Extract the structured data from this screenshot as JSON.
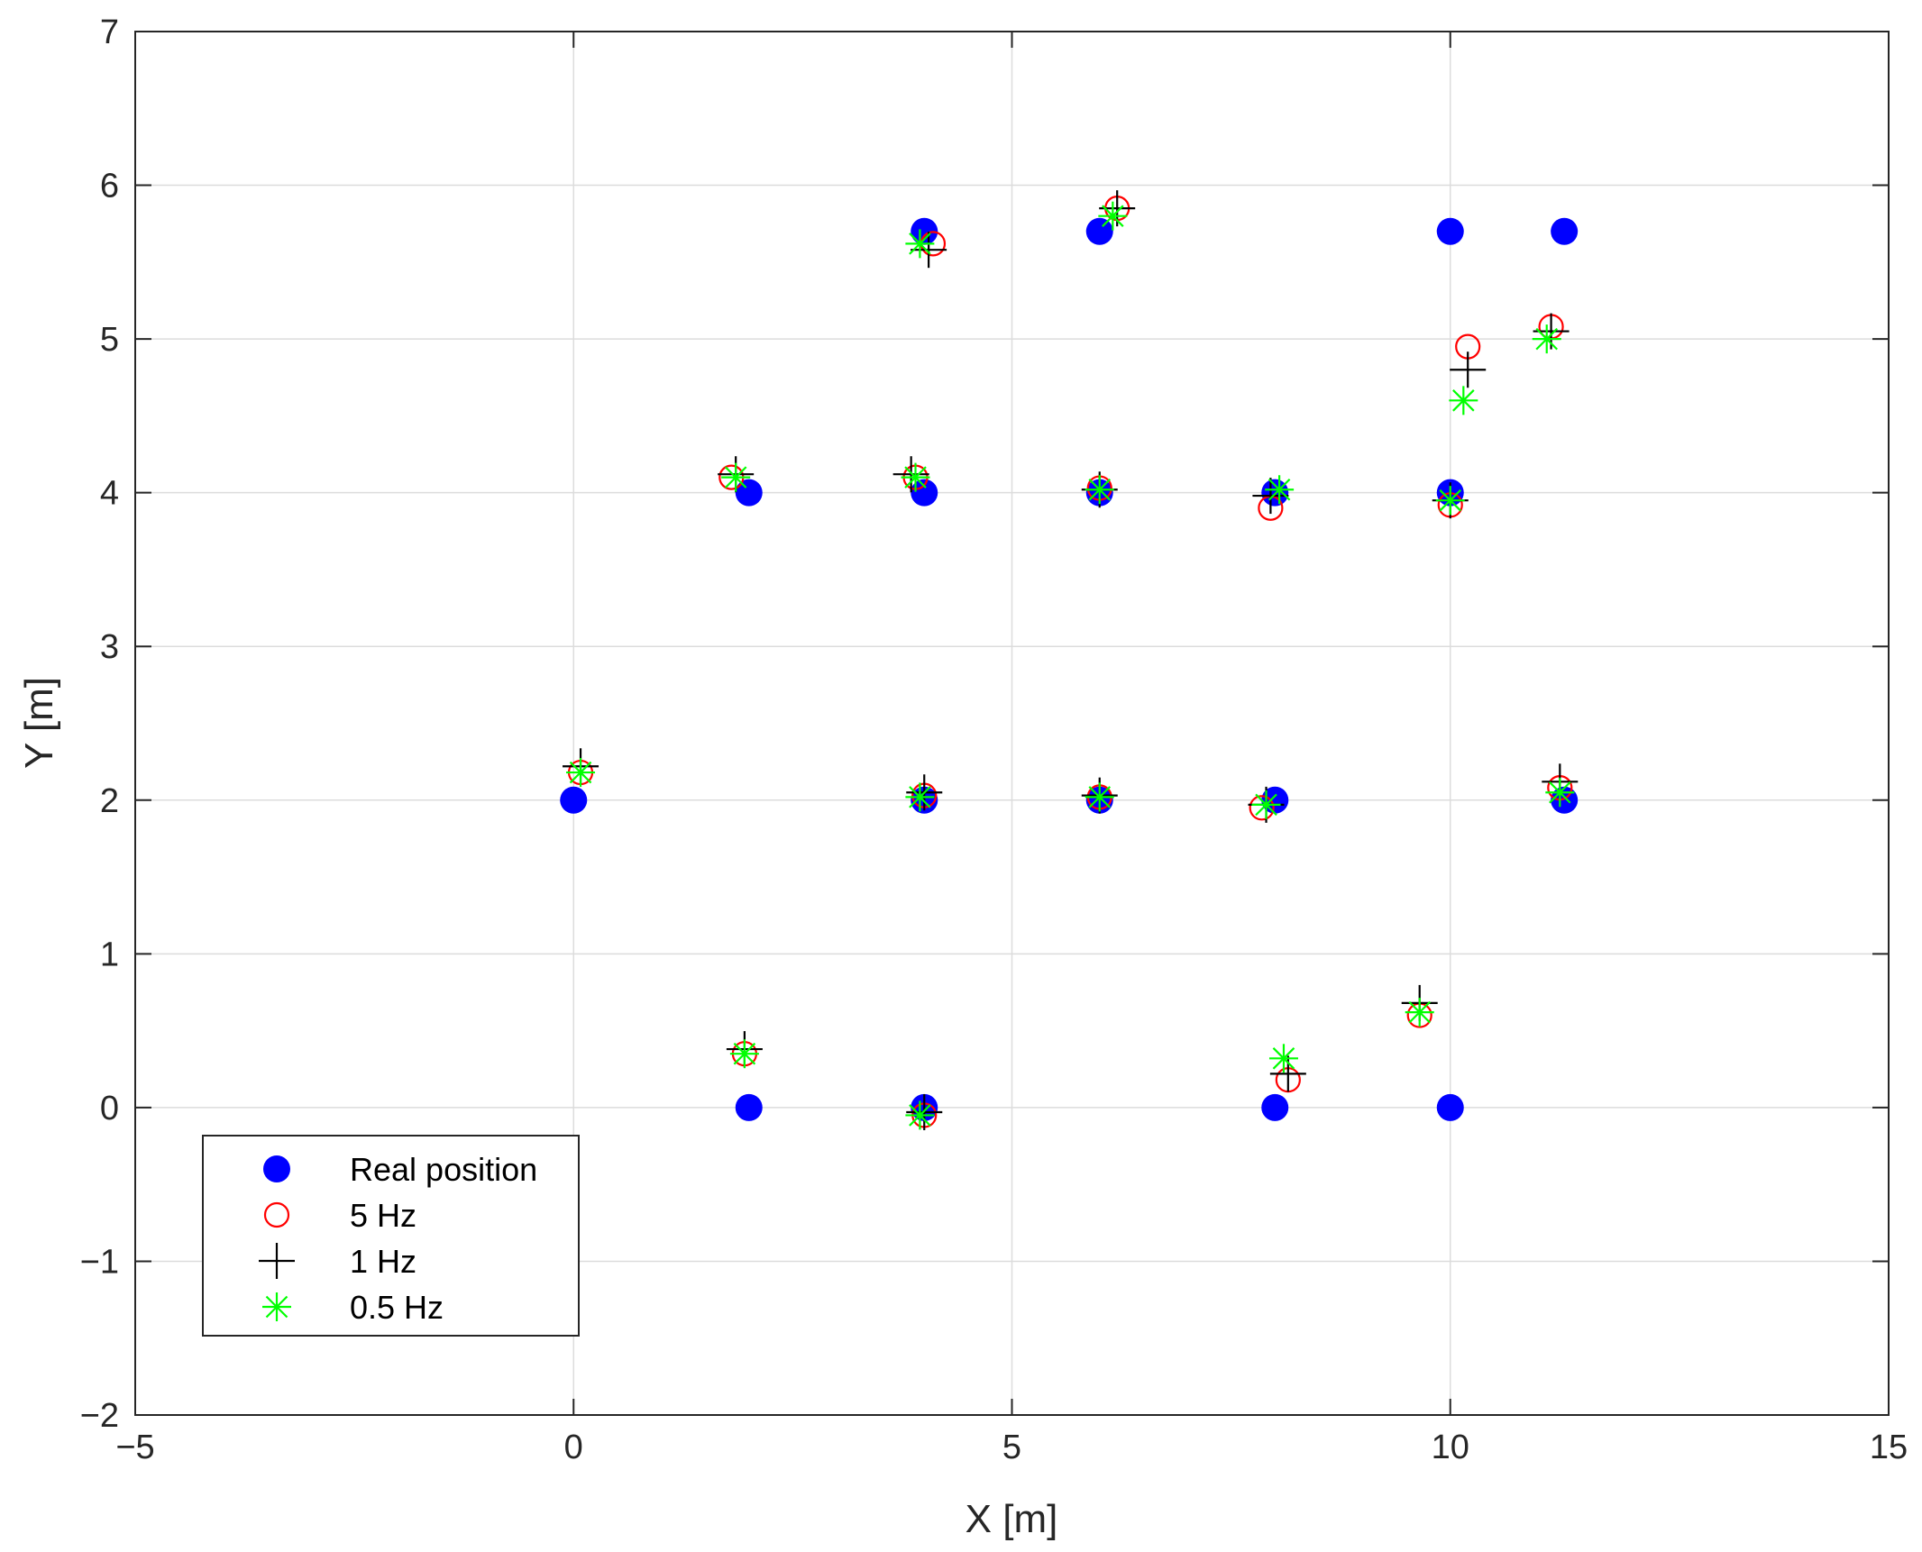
{
  "chart_data": {
    "type": "scatter",
    "title": "",
    "xlabel": "X [m]",
    "ylabel": "Y [m]",
    "xlim": [
      -5,
      15
    ],
    "ylim": [
      -2,
      7
    ],
    "xticks": [
      -5,
      0,
      5,
      10,
      15
    ],
    "yticks": [
      -2,
      -1,
      0,
      1,
      2,
      3,
      4,
      5,
      6,
      7
    ],
    "xtick_labels": [
      "−5",
      "0",
      "5",
      "10",
      "15"
    ],
    "ytick_labels": [
      "−2",
      "−1",
      "0",
      "1",
      "2",
      "3",
      "4",
      "5",
      "6",
      "7"
    ],
    "grid": true,
    "legend_position": "bottom-left",
    "series": [
      {
        "name": "Real position",
        "marker": "filled-circle",
        "color": "#0000ff",
        "points": [
          [
            4.0,
            5.7
          ],
          [
            6.0,
            5.7
          ],
          [
            10.0,
            5.7
          ],
          [
            11.3,
            5.7
          ],
          [
            2.0,
            4.0
          ],
          [
            4.0,
            4.0
          ],
          [
            6.0,
            4.0
          ],
          [
            8.0,
            4.0
          ],
          [
            10.0,
            4.0
          ],
          [
            0.0,
            2.0
          ],
          [
            4.0,
            2.0
          ],
          [
            6.0,
            2.0
          ],
          [
            8.0,
            2.0
          ],
          [
            11.3,
            2.0
          ],
          [
            2.0,
            0.0
          ],
          [
            4.0,
            0.0
          ],
          [
            8.0,
            0.0
          ],
          [
            10.0,
            0.0
          ]
        ]
      },
      {
        "name": "5 Hz",
        "marker": "open-circle",
        "color": "#ff0000",
        "points": [
          [
            4.1,
            5.62
          ],
          [
            6.2,
            5.85
          ],
          [
            10.2,
            4.95
          ],
          [
            11.15,
            5.08
          ],
          [
            1.8,
            4.1
          ],
          [
            3.9,
            4.1
          ],
          [
            6.0,
            4.03
          ],
          [
            7.95,
            3.9
          ],
          [
            10.0,
            3.92
          ],
          [
            0.08,
            2.18
          ],
          [
            4.0,
            2.03
          ],
          [
            6.0,
            2.02
          ],
          [
            7.85,
            1.95
          ],
          [
            11.25,
            2.08
          ],
          [
            1.95,
            0.35
          ],
          [
            4.0,
            -0.05
          ],
          [
            8.15,
            0.18
          ],
          [
            9.65,
            0.6
          ]
        ]
      },
      {
        "name": "1 Hz",
        "marker": "plus",
        "color": "#000000",
        "points": [
          [
            4.05,
            5.58
          ],
          [
            6.2,
            5.85
          ],
          [
            10.2,
            4.8
          ],
          [
            11.15,
            5.05
          ],
          [
            1.85,
            4.12
          ],
          [
            3.85,
            4.12
          ],
          [
            6.0,
            4.02
          ],
          [
            7.95,
            3.98
          ],
          [
            10.0,
            3.95
          ],
          [
            0.08,
            2.22
          ],
          [
            4.0,
            2.05
          ],
          [
            6.0,
            2.03
          ],
          [
            7.9,
            1.97
          ],
          [
            11.25,
            2.12
          ],
          [
            1.95,
            0.38
          ],
          [
            4.0,
            -0.03
          ],
          [
            8.15,
            0.22
          ],
          [
            9.65,
            0.68
          ]
        ]
      },
      {
        "name": "0.5 Hz",
        "marker": "asterisk",
        "color": "#00ff00",
        "points": [
          [
            3.95,
            5.62
          ],
          [
            6.15,
            5.8
          ],
          [
            10.15,
            4.6
          ],
          [
            11.1,
            5.0
          ],
          [
            1.85,
            4.1
          ],
          [
            3.9,
            4.1
          ],
          [
            6.0,
            4.02
          ],
          [
            8.05,
            4.02
          ],
          [
            10.0,
            3.95
          ],
          [
            0.08,
            2.18
          ],
          [
            3.95,
            2.02
          ],
          [
            6.0,
            2.02
          ],
          [
            7.9,
            1.97
          ],
          [
            11.25,
            2.05
          ],
          [
            1.95,
            0.35
          ],
          [
            3.95,
            -0.05
          ],
          [
            8.1,
            0.32
          ],
          [
            9.65,
            0.62
          ]
        ]
      }
    ]
  }
}
